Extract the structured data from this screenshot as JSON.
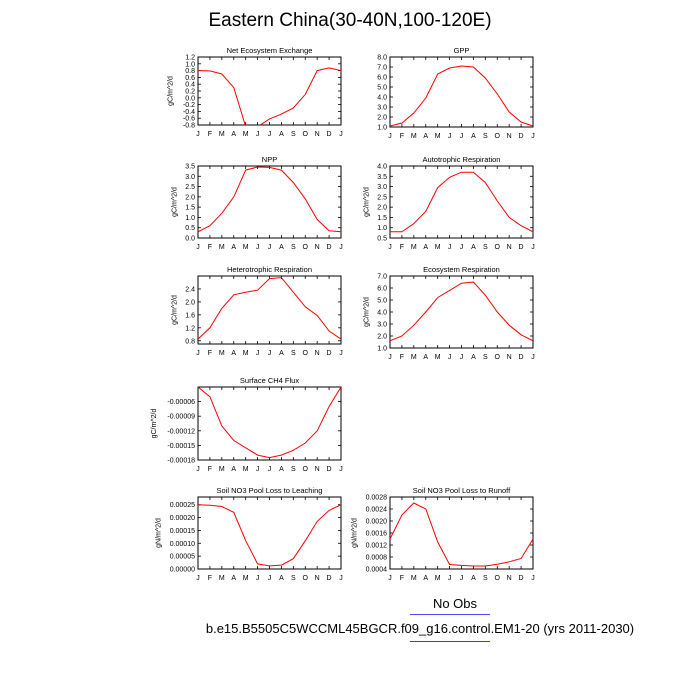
{
  "title": "Eastern China(30-40N,100-120E)",
  "colors": {
    "series": "#ff0000",
    "obs_line": "#4a4aff",
    "model_line": "#ff0000",
    "axis": "#000000"
  },
  "months": [
    "J",
    "F",
    "M",
    "A",
    "M",
    "J",
    "J",
    "A",
    "S",
    "O",
    "N",
    "D",
    "J"
  ],
  "legend": {
    "obs": "No Obs",
    "model": "b.e15.B5505C5WCCML45BGCR.f09_g16.control.EM1-20 (yrs 2011-2030)"
  },
  "chart_data": [
    {
      "type": "line",
      "title": "Net Ecosystem Exchange",
      "ylabel": "gC/m^2/d",
      "ylim": [
        -0.8,
        1.2
      ],
      "yticks": [
        -0.8,
        -0.6,
        -0.4,
        -0.2,
        0,
        0.2,
        0.4,
        0.6,
        0.8,
        1.0,
        1.2
      ],
      "ytick_labels": [
        "-0.8",
        "-0.6",
        "-0.4",
        "-0.2",
        "0.0",
        "0.2",
        "0.4",
        "0.6",
        "0.8",
        "1.0",
        "1.2"
      ],
      "values": [
        0.8,
        0.79,
        0.7,
        0.3,
        -0.85,
        -0.85,
        -0.62,
        -0.48,
        -0.3,
        0.1,
        0.8,
        0.88,
        0.8
      ]
    },
    {
      "type": "line",
      "title": "GPP",
      "ylabel": "",
      "ylim": [
        1.0,
        8.0
      ],
      "yticks": [
        1,
        2,
        3,
        4,
        5,
        6,
        7,
        8
      ],
      "ytick_labels": [
        "1.0",
        "2.0",
        "3.0",
        "4.0",
        "5.0",
        "6.0",
        "7.0",
        "8.0"
      ],
      "values": [
        1.1,
        1.4,
        2.4,
        3.9,
        6.3,
        6.9,
        7.1,
        7.0,
        5.9,
        4.3,
        2.5,
        1.5,
        1.1
      ]
    },
    {
      "type": "line",
      "title": "NPP",
      "ylabel": "gC/m^2/d",
      "ylim": [
        0,
        3.5
      ],
      "yticks": [
        0,
        0.5,
        1,
        1.5,
        2,
        2.5,
        3,
        3.5
      ],
      "ytick_labels": [
        "0.0",
        "0.5",
        "1.0",
        "1.5",
        "2.0",
        "2.5",
        "3.0",
        "3.5"
      ],
      "values": [
        0.3,
        0.6,
        1.2,
        2.0,
        3.3,
        3.45,
        3.43,
        3.3,
        2.7,
        1.9,
        0.9,
        0.35,
        0.3
      ]
    },
    {
      "type": "line",
      "title": "Autotrophic Respiration",
      "ylabel": "gC/m^2/d",
      "ylim": [
        0.5,
        4.0
      ],
      "yticks": [
        0.5,
        1,
        1.5,
        2,
        2.5,
        3,
        3.5,
        4
      ],
      "ytick_labels": [
        "0.5",
        "1.0",
        "1.5",
        "2.0",
        "2.5",
        "3.0",
        "3.5",
        "4.0"
      ],
      "values": [
        0.8,
        0.8,
        1.2,
        1.8,
        2.95,
        3.45,
        3.7,
        3.7,
        3.2,
        2.3,
        1.5,
        1.1,
        0.8
      ]
    },
    {
      "type": "line",
      "title": "Heterotrophic Respiration",
      "ylabel": "gC/m^2/d",
      "ylim": [
        0.7,
        2.8
      ],
      "yticks": [
        0.8,
        1.2,
        1.6,
        2.0,
        2.4
      ],
      "ytick_labels": [
        "0.8",
        "1.2",
        "1.6",
        "2.0",
        "2.4"
      ],
      "values": [
        0.85,
        1.2,
        1.8,
        2.22,
        2.3,
        2.36,
        2.72,
        2.75,
        2.3,
        1.85,
        1.58,
        1.1,
        0.85
      ]
    },
    {
      "type": "line",
      "title": "Ecosystem Respiration",
      "ylabel": "gC/m^2/d",
      "ylim": [
        1.0,
        7.0
      ],
      "yticks": [
        1,
        2,
        3,
        4,
        5,
        6,
        7
      ],
      "ytick_labels": [
        "1.0",
        "2.0",
        "3.0",
        "4.0",
        "5.0",
        "6.0",
        "7.0"
      ],
      "values": [
        1.6,
        2.0,
        2.9,
        4.0,
        5.2,
        5.8,
        6.4,
        6.5,
        5.4,
        4.0,
        2.9,
        2.1,
        1.6
      ]
    },
    {
      "type": "line",
      "title": "Surface CH4 Flux",
      "ylabel": "gC/m^2/d",
      "ylim": [
        -0.00018,
        -3e-05
      ],
      "yticks": [
        -0.00018,
        -0.00015,
        -0.00012,
        -9e-05,
        -6e-05
      ],
      "ytick_labels": [
        "-0.00018",
        "-0.00015",
        "-0.00012",
        "-0.00009",
        "-0.00006"
      ],
      "values": [
        -3e-05,
        -5e-05,
        -0.00011,
        -0.00014,
        -0.000155,
        -0.00017,
        -0.000175,
        -0.00017,
        -0.00016,
        -0.000145,
        -0.00012,
        -7e-05,
        -3e-05
      ]
    },
    {
      "type": "line",
      "title": "Soil NO3 Pool Loss to Leaching",
      "ylabel": "gN/m^2/d",
      "ylim": [
        0,
        0.00028
      ],
      "yticks": [
        0,
        5e-05,
        0.0001,
        0.00015,
        0.0002,
        0.00025
      ],
      "ytick_labels": [
        "0.00000",
        "0.00005",
        "0.00010",
        "0.00015",
        "0.00020",
        "0.00025"
      ],
      "values": [
        0.00025,
        0.000248,
        0.000243,
        0.00022,
        0.00011,
        2e-05,
        1.2e-05,
        1.5e-05,
        4e-05,
        0.00011,
        0.000185,
        0.000228,
        0.00025
      ]
    },
    {
      "type": "line",
      "title": "Soil NO3 Pool Loss to Runoff",
      "ylabel": "gN/m^2/d",
      "ylim": [
        0.0004,
        0.0028
      ],
      "yticks": [
        0.0004,
        0.0008,
        0.0012,
        0.0016,
        0.002,
        0.0024,
        0.0028
      ],
      "ytick_labels": [
        "0.0004",
        "0.0008",
        "0.0012",
        "0.0016",
        "0.0020",
        "0.0024",
        "0.0028"
      ],
      "values": [
        0.0014,
        0.0022,
        0.0026,
        0.0024,
        0.0013,
        0.00055,
        0.00052,
        0.0005,
        0.0005,
        0.00056,
        0.00064,
        0.00075,
        0.0014
      ]
    }
  ]
}
